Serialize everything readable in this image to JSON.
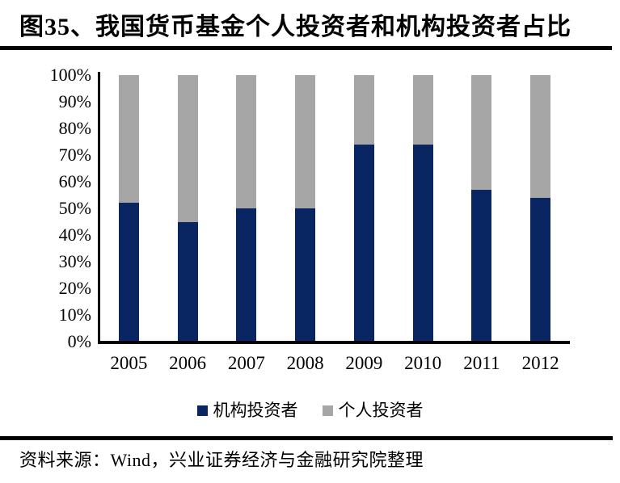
{
  "page": {
    "title": "图35、我国货币基金个人投资者和机构投资者占比",
    "source": "资料来源：Wind，兴业证券经济与金融研究院整理"
  },
  "colors": {
    "institutional_navy": "#0A2662",
    "individual_gray": "#A6A6A6",
    "axis_black": "#000000",
    "background": "#FFFFFF"
  },
  "chart_data": {
    "type": "bar",
    "variant": "stacked-100-percent-column",
    "title": "图35、我国货币基金个人投资者和机构投资者占比",
    "xlabel": "",
    "ylabel": "",
    "categories": [
      "2005",
      "2006",
      "2007",
      "2008",
      "2009",
      "2010",
      "2011",
      "2012"
    ],
    "series": [
      {
        "name": "机构投资者",
        "color": "#0A2662",
        "values": [
          52,
          45,
          50,
          50,
          74,
          74,
          57,
          54
        ]
      },
      {
        "name": "个人投资者",
        "color": "#A6A6A6",
        "values": [
          48,
          55,
          50,
          50,
          26,
          26,
          43,
          46
        ]
      }
    ],
    "unit": "%",
    "ylim": [
      0,
      100
    ],
    "yticks": [
      "0%",
      "10%",
      "20%",
      "30%",
      "40%",
      "50%",
      "60%",
      "70%",
      "80%",
      "90%",
      "100%"
    ],
    "grid": false,
    "legend_position": "bottom"
  }
}
